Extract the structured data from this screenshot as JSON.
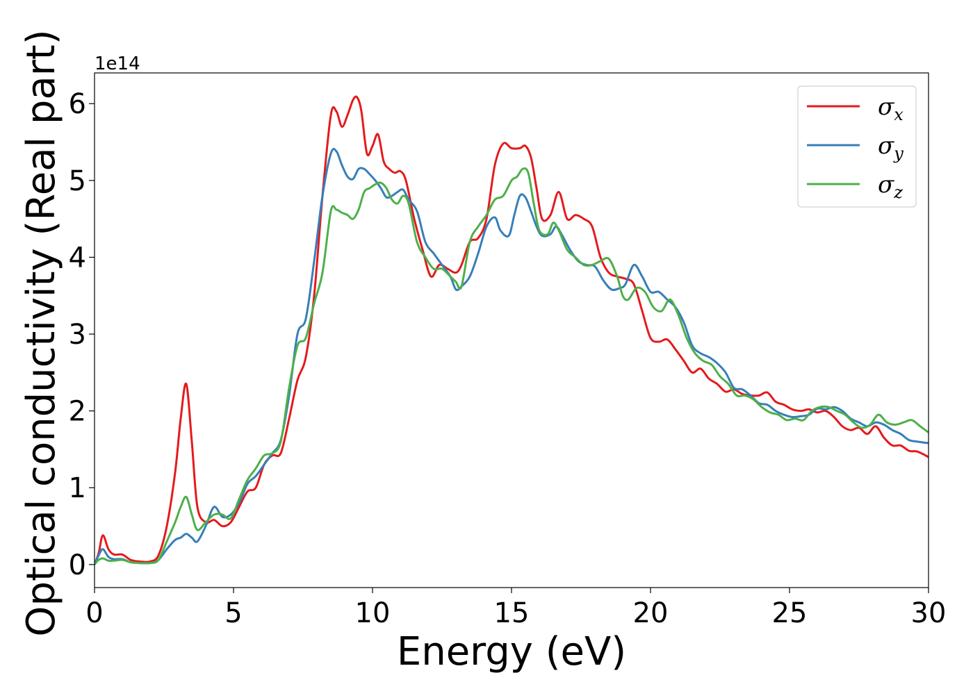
{
  "chart_data": {
    "type": "line",
    "xlabel": "Energy (eV)",
    "ylabel": "Optical conductivity (Real part)",
    "y_offset_text": "1e14",
    "y_scale": 100000000000000.0,
    "xlim": [
      0,
      30
    ],
    "ylim": [
      -0.3,
      6.4
    ],
    "xticks": [
      0,
      5,
      10,
      15,
      20,
      25,
      30
    ],
    "yticks": [
      0,
      1,
      2,
      3,
      4,
      5,
      6
    ],
    "grid": false,
    "legend_position": "top-right",
    "series": [
      {
        "name": "σx",
        "legend_symbol": "σ",
        "legend_subscript": "x",
        "color": "#e41a1c",
        "x": [
          0,
          0.15,
          0.3,
          0.5,
          0.7,
          1.0,
          1.3,
          1.6,
          2.0,
          2.3,
          2.6,
          2.9,
          3.1,
          3.3,
          3.5,
          3.7,
          4.0,
          4.3,
          4.6,
          4.9,
          5.2,
          5.5,
          5.8,
          6.1,
          6.4,
          6.7,
          7.0,
          7.3,
          7.6,
          7.9,
          8.2,
          8.5,
          8.7,
          8.9,
          9.1,
          9.3,
          9.45,
          9.6,
          9.8,
          10.0,
          10.2,
          10.4,
          10.6,
          10.8,
          11.0,
          11.2,
          11.5,
          11.8,
          12.1,
          12.4,
          12.7,
          13.0,
          13.2,
          13.5,
          13.8,
          14.1,
          14.4,
          14.7,
          15.0,
          15.3,
          15.5,
          15.7,
          15.9,
          16.1,
          16.4,
          16.7,
          17.0,
          17.3,
          17.6,
          17.9,
          18.2,
          18.5,
          18.8,
          19.1,
          19.4,
          19.7,
          20.0,
          20.3,
          20.6,
          20.9,
          21.2,
          21.5,
          21.8,
          22.1,
          22.4,
          22.7,
          23.0,
          23.3,
          23.6,
          23.9,
          24.2,
          24.5,
          24.8,
          25.1,
          25.4,
          25.7,
          26.0,
          26.3,
          26.6,
          26.9,
          27.2,
          27.5,
          27.8,
          28.1,
          28.4,
          28.7,
          29.0,
          29.3,
          29.6,
          30.0
        ],
        "y": [
          0,
          0.15,
          0.38,
          0.2,
          0.13,
          0.13,
          0.06,
          0.04,
          0.04,
          0.12,
          0.5,
          1.2,
          1.9,
          2.35,
          1.6,
          0.75,
          0.55,
          0.58,
          0.5,
          0.55,
          0.75,
          0.95,
          1.0,
          1.3,
          1.42,
          1.45,
          1.9,
          2.4,
          2.7,
          3.5,
          4.8,
          5.85,
          5.9,
          5.7,
          5.85,
          6.05,
          6.08,
          5.9,
          5.35,
          5.45,
          5.6,
          5.25,
          5.15,
          5.1,
          5.12,
          5.0,
          4.5,
          4.1,
          3.75,
          3.9,
          3.85,
          3.8,
          3.9,
          4.2,
          4.25,
          4.5,
          5.2,
          5.48,
          5.42,
          5.42,
          5.45,
          5.3,
          4.9,
          4.5,
          4.55,
          4.85,
          4.5,
          4.55,
          4.5,
          4.4,
          4.0,
          3.8,
          3.75,
          3.72,
          3.65,
          3.3,
          2.95,
          2.9,
          2.93,
          2.8,
          2.65,
          2.5,
          2.55,
          2.42,
          2.35,
          2.25,
          2.28,
          2.22,
          2.2,
          2.2,
          2.24,
          2.12,
          2.08,
          2.02,
          2.0,
          2.02,
          1.98,
          2.0,
          1.92,
          1.8,
          1.75,
          1.78,
          1.7,
          1.8,
          1.65,
          1.55,
          1.55,
          1.48,
          1.47,
          1.4
        ]
      },
      {
        "name": "σy",
        "legend_symbol": "σ",
        "legend_subscript": "y",
        "color": "#377eb8",
        "x": [
          0,
          0.15,
          0.3,
          0.5,
          0.7,
          1.0,
          1.3,
          1.6,
          2.0,
          2.3,
          2.6,
          2.9,
          3.1,
          3.3,
          3.5,
          3.7,
          4.0,
          4.3,
          4.6,
          4.9,
          5.2,
          5.5,
          5.8,
          6.1,
          6.4,
          6.7,
          7.0,
          7.3,
          7.6,
          7.9,
          8.2,
          8.5,
          8.7,
          8.9,
          9.1,
          9.3,
          9.5,
          9.7,
          9.9,
          10.1,
          10.3,
          10.5,
          10.7,
          10.9,
          11.1,
          11.3,
          11.6,
          11.9,
          12.2,
          12.5,
          12.8,
          13.0,
          13.2,
          13.5,
          13.8,
          14.1,
          14.4,
          14.6,
          14.9,
          15.1,
          15.3,
          15.5,
          15.7,
          15.9,
          16.1,
          16.4,
          16.6,
          16.8,
          17.1,
          17.4,
          17.7,
          18.0,
          18.3,
          18.6,
          18.9,
          19.1,
          19.4,
          19.7,
          20.0,
          20.3,
          20.6,
          20.9,
          21.2,
          21.5,
          21.8,
          22.1,
          22.4,
          22.7,
          23.0,
          23.3,
          23.6,
          23.9,
          24.2,
          24.5,
          24.8,
          25.1,
          25.4,
          25.7,
          26.0,
          26.3,
          26.6,
          26.9,
          27.2,
          27.5,
          27.8,
          28.1,
          28.4,
          28.7,
          29.0,
          29.3,
          29.6,
          30.0
        ],
        "y": [
          0,
          0.12,
          0.2,
          0.1,
          0.07,
          0.07,
          0.03,
          0.02,
          0.02,
          0.06,
          0.2,
          0.32,
          0.35,
          0.4,
          0.35,
          0.3,
          0.5,
          0.75,
          0.62,
          0.65,
          0.8,
          1.05,
          1.15,
          1.3,
          1.45,
          1.62,
          2.2,
          3.0,
          3.2,
          3.95,
          4.8,
          5.35,
          5.38,
          5.2,
          5.05,
          5.02,
          5.15,
          5.15,
          5.08,
          5.0,
          4.9,
          4.78,
          4.8,
          4.85,
          4.88,
          4.75,
          4.6,
          4.2,
          4.05,
          3.9,
          3.75,
          3.58,
          3.62,
          3.75,
          4.05,
          4.4,
          4.52,
          4.35,
          4.28,
          4.55,
          4.8,
          4.78,
          4.6,
          4.4,
          4.28,
          4.3,
          4.4,
          4.3,
          4.1,
          3.95,
          3.9,
          3.88,
          3.7,
          3.58,
          3.6,
          3.65,
          3.9,
          3.75,
          3.55,
          3.55,
          3.45,
          3.35,
          3.15,
          2.85,
          2.75,
          2.7,
          2.62,
          2.5,
          2.3,
          2.28,
          2.2,
          2.1,
          2.08,
          2.0,
          1.95,
          1.92,
          1.93,
          1.95,
          2.03,
          2.02,
          2.05,
          2.0,
          1.9,
          1.85,
          1.8,
          1.85,
          1.82,
          1.75,
          1.7,
          1.62,
          1.6,
          1.58
        ]
      },
      {
        "name": "σz",
        "legend_symbol": "σ",
        "legend_subscript": "z",
        "color": "#4daf4a",
        "x": [
          0,
          0.15,
          0.3,
          0.5,
          0.7,
          1.0,
          1.3,
          1.6,
          2.0,
          2.3,
          2.6,
          2.9,
          3.1,
          3.3,
          3.5,
          3.7,
          4.0,
          4.3,
          4.6,
          4.9,
          5.2,
          5.5,
          5.8,
          6.1,
          6.4,
          6.7,
          7.0,
          7.3,
          7.6,
          7.9,
          8.2,
          8.5,
          8.7,
          8.9,
          9.1,
          9.3,
          9.5,
          9.7,
          9.9,
          10.1,
          10.3,
          10.5,
          10.7,
          10.9,
          11.1,
          11.3,
          11.6,
          11.9,
          12.2,
          12.5,
          12.8,
          13.0,
          13.2,
          13.5,
          13.8,
          14.1,
          14.4,
          14.7,
          15.0,
          15.2,
          15.4,
          15.6,
          15.8,
          16.0,
          16.3,
          16.5,
          16.7,
          17.0,
          17.3,
          17.6,
          17.9,
          18.2,
          18.5,
          18.8,
          19.0,
          19.2,
          19.5,
          19.8,
          20.1,
          20.4,
          20.7,
          21.0,
          21.3,
          21.6,
          21.9,
          22.2,
          22.5,
          22.8,
          23.1,
          23.4,
          23.7,
          24.0,
          24.3,
          24.6,
          24.9,
          25.2,
          25.5,
          25.8,
          26.1,
          26.4,
          26.7,
          27.0,
          27.3,
          27.6,
          27.9,
          28.2,
          28.5,
          28.8,
          29.1,
          29.4,
          29.7,
          30.0
        ],
        "y": [
          0,
          0.06,
          0.08,
          0.05,
          0.05,
          0.06,
          0.03,
          0.02,
          0.02,
          0.06,
          0.3,
          0.55,
          0.75,
          0.88,
          0.65,
          0.45,
          0.55,
          0.65,
          0.65,
          0.6,
          0.85,
          1.1,
          1.25,
          1.42,
          1.45,
          1.6,
          2.3,
          2.85,
          2.95,
          3.4,
          3.8,
          4.6,
          4.62,
          4.58,
          4.55,
          4.5,
          4.62,
          4.85,
          4.9,
          4.95,
          4.97,
          4.9,
          4.75,
          4.7,
          4.8,
          4.7,
          4.2,
          4.0,
          3.85,
          3.85,
          3.75,
          3.68,
          3.62,
          4.2,
          4.4,
          4.55,
          4.75,
          4.8,
          5.0,
          5.05,
          5.15,
          5.1,
          4.7,
          4.35,
          4.3,
          4.45,
          4.35,
          4.1,
          4.0,
          3.9,
          3.9,
          3.95,
          3.98,
          3.75,
          3.5,
          3.45,
          3.6,
          3.55,
          3.35,
          3.3,
          3.45,
          3.25,
          2.95,
          2.75,
          2.65,
          2.6,
          2.45,
          2.35,
          2.2,
          2.2,
          2.15,
          2.05,
          1.98,
          1.95,
          1.88,
          1.9,
          1.88,
          2.0,
          2.05,
          2.05,
          2.0,
          1.95,
          1.85,
          1.78,
          1.82,
          1.95,
          1.85,
          1.82,
          1.85,
          1.88,
          1.8,
          1.72
        ]
      }
    ]
  }
}
